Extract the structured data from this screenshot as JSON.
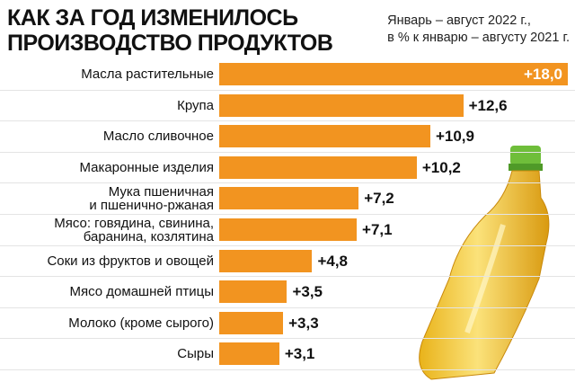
{
  "chart_data": {
    "type": "bar",
    "title": "КАК ЗА ГОД ИЗМЕНИЛОСЬ\nПРОИЗВОДСТВО ПРОДУКТОВ",
    "subtitle": "Январь – август 2022 г.,\nв % к январю – августу 2021 г.",
    "categories": [
      "Масла растительные",
      "Крупа",
      "Масло сливочное",
      "Макаронные изделия",
      "Мука пшеничная\nи пшенично-ржаная",
      "Мясо: говядина, свинина,\nбаранина, козлятина",
      "Соки из фруктов и овощей",
      "Мясо домашней птицы",
      "Молоко (кроме сырого)",
      "Сыры"
    ],
    "values": [
      18.0,
      12.6,
      10.9,
      10.2,
      7.2,
      7.1,
      4.8,
      3.5,
      3.3,
      3.1
    ],
    "value_labels": [
      "+18,0",
      "+12,6",
      "+10,9",
      "+10,2",
      "+7,2",
      "+7,1",
      "+4,8",
      "+3,5",
      "+3,3",
      "+3,1"
    ],
    "color": "#f29420"
  }
}
